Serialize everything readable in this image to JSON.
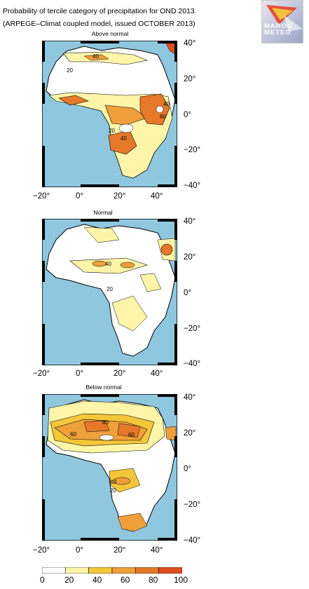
{
  "title_line1": "Probability of tercile category of precipitation for OND 2013",
  "title_line2": "(ARPEGE–Climat coupled model, issued OCTOBER 2013)",
  "logo": {
    "text_line1": "MAROC",
    "text_line2": "METEO",
    "icon": "maroc-meteo-logo"
  },
  "panels": [
    {
      "title": "Above normal",
      "contour_labels": [
        "40",
        "20",
        "40",
        "60",
        "20",
        "40"
      ]
    },
    {
      "title": "Normal",
      "contour_labels": [
        "40",
        "20"
      ]
    },
    {
      "title": "Below normal",
      "contour_labels": [
        "60",
        "80",
        "60",
        "40",
        "20"
      ]
    }
  ],
  "lon_ticks": [
    "−20°",
    "0°",
    "20°",
    "40°"
  ],
  "lat_ticks": [
    "40°",
    "20°",
    "0°",
    "−20°",
    "−40°"
  ],
  "colorbar": {
    "labels": [
      "0",
      "20",
      "40",
      "60",
      "80",
      "100"
    ],
    "colors": [
      "#ffffff",
      "#fff5a8",
      "#f4c73a",
      "#efa03a",
      "#e7782a",
      "#e04e20"
    ]
  },
  "map_colors": {
    "ocean": "#8fc7df",
    "land": "#ffffff"
  }
}
